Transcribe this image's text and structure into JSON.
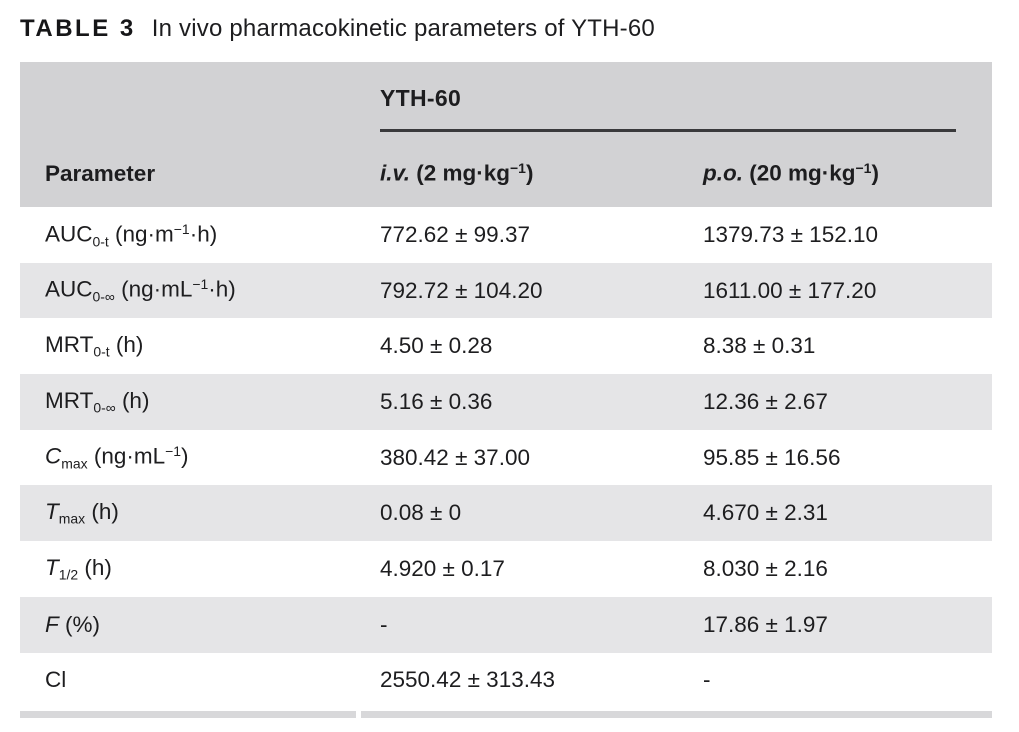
{
  "title": {
    "label": "TABLE 3",
    "text": "In vivo pharmacokinetic parameters of YTH-60"
  },
  "table": {
    "group_header": "YTH-60",
    "columns": [
      "Parameter",
      "*i.v.* (2 mg·kg^{−1})",
      "*p.o.* (20 mg·kg^{−1})"
    ],
    "rows": [
      {
        "param": "AUC_{0-t} (ng·m^{−1}·h)",
        "iv": "772.62 ± 99.37",
        "po": "1379.73 ± 152.10"
      },
      {
        "param": "AUC_{0-∞} (ng·mL^{−1}·h)",
        "iv": "792.72 ± 104.20",
        "po": "1611.00 ± 177.20"
      },
      {
        "param": "MRT_{0-t} (h)",
        "iv": "4.50 ± 0.28",
        "po": "8.38 ± 0.31"
      },
      {
        "param": "MRT_{0-∞} (h)",
        "iv": "5.16 ± 0.36",
        "po": "12.36 ± 2.67"
      },
      {
        "param": "*C*_{max} (ng·mL^{−1})",
        "iv": "380.42 ± 37.00",
        "po": "95.85 ± 16.56"
      },
      {
        "param": "*T*_{max} (h)",
        "iv": "0.08 ± 0",
        "po": "4.670 ± 2.31"
      },
      {
        "param": "*T*_{1/2} (h)",
        "iv": "4.920 ± 0.17",
        "po": "8.030 ± 2.16"
      },
      {
        "param": "*F* (%)",
        "iv": "-",
        "po": "17.86 ± 1.97"
      },
      {
        "param": "Cl",
        "iv": "2550.42 ± 313.43",
        "po": "-"
      }
    ]
  },
  "colors": {
    "text": "#1d1d1f",
    "header_bg": "#d2d2d4",
    "stripe_bg": "#e5e5e7",
    "group_rule": "#3a3a3c",
    "bottom_bar": "#d8d8da",
    "page_bg": "#ffffff"
  }
}
